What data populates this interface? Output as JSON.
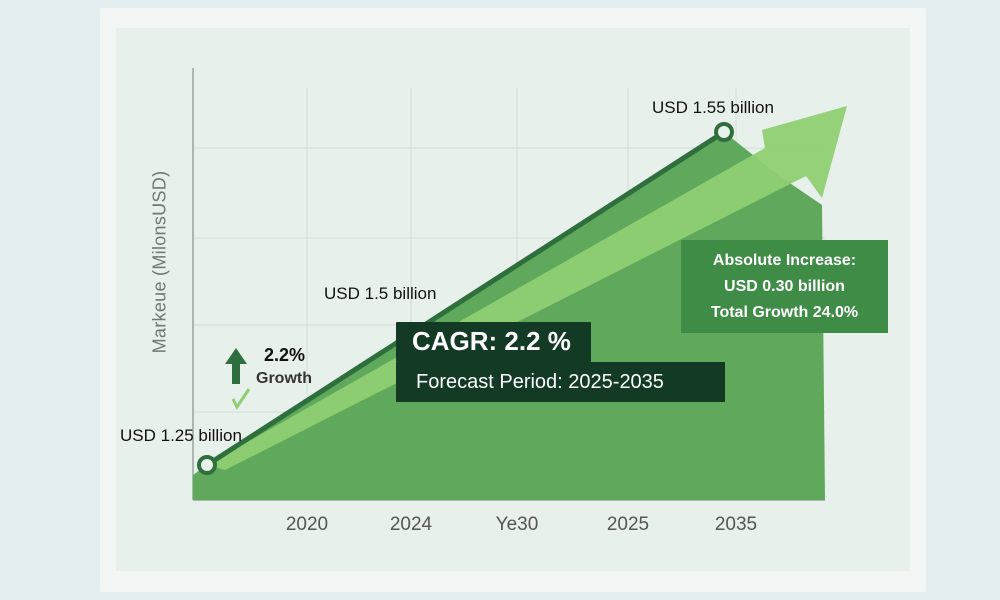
{
  "chart_data": {
    "type": "area",
    "title": "",
    "ylabel": "Markeue (MilonsUSD)",
    "xlabel": "",
    "x_ticks": [
      "2020",
      "2024",
      "Ye30",
      "2025",
      "2035"
    ],
    "series": [
      {
        "values": [
          1.25,
          1.55
        ]
      }
    ],
    "data_labels": [
      "USD 1.25 billion",
      "USD 1.5 billion",
      "USD 1.55 billion"
    ],
    "grid": true,
    "colors": {
      "area": "#5fa85c",
      "line": "#2f6e3d",
      "arrow": "#8fcf72",
      "panel": "#e7f0ea"
    }
  },
  "annotations": {
    "cagr": "CAGR: 2.2  %",
    "forecast": "Forecast Period: 2025-2035",
    "absolute_increase": "Absolute Increase:",
    "usd_increase": "USD 0.30 billion",
    "total_growth": "Total Growth 24.0%",
    "growth_pct": "2.2%",
    "growth_word": "Growth"
  },
  "icons": [
    "up-arrow-icon",
    "check-icon"
  ]
}
